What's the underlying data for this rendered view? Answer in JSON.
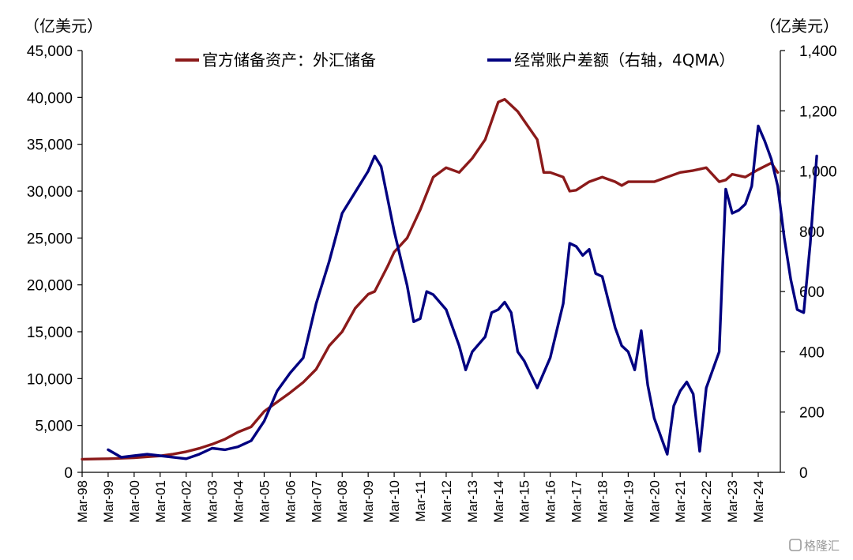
{
  "chart_data": {
    "type": "line",
    "left_axis_unit": "（亿美元）",
    "right_axis_unit": "（亿美元）",
    "y_left": {
      "lim": [
        0,
        45000
      ],
      "ticks": [
        0,
        5000,
        10000,
        15000,
        20000,
        25000,
        30000,
        35000,
        40000,
        45000
      ],
      "tick_labels": [
        "0",
        "5,000",
        "10,000",
        "15,000",
        "20,000",
        "25,000",
        "30,000",
        "35,000",
        "40,000",
        "45,000"
      ]
    },
    "y_right": {
      "lim": [
        0,
        1400
      ],
      "ticks": [
        0,
        200,
        400,
        600,
        800,
        1000,
        1200,
        1400
      ],
      "tick_labels": [
        "0",
        "200",
        "400",
        "600",
        "800",
        "1,000",
        "1,200",
        "1,400"
      ]
    },
    "x_axis": {
      "start": 1998.0,
      "end": 2024.85,
      "tick_labels": [
        "Mar-98",
        "Mar-99",
        "Mar-00",
        "Mar-01",
        "Mar-02",
        "Mar-03",
        "Mar-04",
        "Mar-05",
        "Mar-06",
        "Mar-07",
        "Mar-08",
        "Mar-09",
        "Mar-10",
        "Mar-11",
        "Mar-12",
        "Mar-13",
        "Mar-14",
        "Mar-15",
        "Mar-16",
        "Mar-17",
        "Mar-18",
        "Mar-19",
        "Mar-20",
        "Mar-21",
        "Mar-22",
        "Mar-23",
        "Mar-24"
      ]
    },
    "legend_position": "top",
    "series": [
      {
        "name": "官方储备资产：外汇储备",
        "axis": "left",
        "color": "#8B1A1A",
        "points": [
          [
            "Mar-1998",
            1400
          ],
          [
            "Mar-1999",
            1450
          ],
          [
            "Mar-2000",
            1550
          ],
          [
            "Mar-2001",
            1750
          ],
          [
            "Sep-2001",
            1950
          ],
          [
            "Mar-2002",
            2200
          ],
          [
            "Sep-2002",
            2550
          ],
          [
            "Mar-2003",
            3000
          ],
          [
            "Sep-2003",
            3550
          ],
          [
            "Mar-2004",
            4300
          ],
          [
            "Sep-2004",
            4850
          ],
          [
            "Mar-2005",
            6500
          ],
          [
            "Sep-2005",
            7500
          ],
          [
            "Mar-2006",
            8500
          ],
          [
            "Sep-2006",
            9600
          ],
          [
            "Mar-2007",
            11000
          ],
          [
            "Sep-2007",
            13500
          ],
          [
            "Mar-2008",
            15000
          ],
          [
            "Sep-2008",
            17500
          ],
          [
            "Mar-2009",
            19000
          ],
          [
            "Jun-2009",
            19300
          ],
          [
            "Dec-2009",
            22000
          ],
          [
            "Mar-2010",
            23500
          ],
          [
            "Sep-2010",
            25000
          ],
          [
            "Mar-2011",
            28000
          ],
          [
            "Sep-2011",
            31500
          ],
          [
            "Mar-2012",
            32500
          ],
          [
            "Sep-2012",
            32000
          ],
          [
            "Mar-2013",
            33500
          ],
          [
            "Sep-2013",
            35500
          ],
          [
            "Mar-2014",
            39500
          ],
          [
            "Jun-2014",
            39800
          ],
          [
            "Dec-2014",
            38500
          ],
          [
            "Mar-2015",
            37500
          ],
          [
            "Sep-2015",
            35500
          ],
          [
            "Dec-2015",
            32000
          ],
          [
            "Mar-2016",
            32000
          ],
          [
            "Sep-2016",
            31500
          ],
          [
            "Dec-2016",
            30000
          ],
          [
            "Mar-2017",
            30100
          ],
          [
            "Sep-2017",
            31000
          ],
          [
            "Mar-2018",
            31500
          ],
          [
            "Sep-2018",
            31000
          ],
          [
            "Dec-2018",
            30600
          ],
          [
            "Mar-2019",
            31000
          ],
          [
            "Sep-2019",
            31000
          ],
          [
            "Mar-2020",
            31000
          ],
          [
            "Sep-2020",
            31500
          ],
          [
            "Mar-2021",
            32000
          ],
          [
            "Sep-2021",
            32200
          ],
          [
            "Mar-2022",
            32500
          ],
          [
            "Sep-2022",
            31000
          ],
          [
            "Dec-2022",
            31200
          ],
          [
            "Mar-2023",
            31800
          ],
          [
            "Sep-2023",
            31500
          ],
          [
            "Mar-2024",
            32300
          ],
          [
            "Sep-2024",
            33000
          ],
          [
            "Dec-2024",
            32000
          ]
        ]
      },
      {
        "name": "经常账户差额（右轴，4QMA）",
        "axis": "right",
        "color": "#000080",
        "points": [
          [
            "Mar-1999",
            75
          ],
          [
            "Sep-1999",
            50
          ],
          [
            "Mar-2000",
            55
          ],
          [
            "Sep-2000",
            60
          ],
          [
            "Mar-2001",
            55
          ],
          [
            "Sep-2001",
            50
          ],
          [
            "Mar-2002",
            45
          ],
          [
            "Sep-2002",
            60
          ],
          [
            "Mar-2003",
            80
          ],
          [
            "Sep-2003",
            75
          ],
          [
            "Mar-2004",
            85
          ],
          [
            "Sep-2004",
            105
          ],
          [
            "Mar-2005",
            170
          ],
          [
            "Sep-2005",
            270
          ],
          [
            "Mar-2006",
            330
          ],
          [
            "Sep-2006",
            380
          ],
          [
            "Mar-2007",
            560
          ],
          [
            "Sep-2007",
            700
          ],
          [
            "Mar-2008",
            860
          ],
          [
            "Sep-2008",
            930
          ],
          [
            "Mar-2009",
            1000
          ],
          [
            "Jun-2009",
            1050
          ],
          [
            "Sep-2009",
            1015
          ],
          [
            "Mar-2010",
            800
          ],
          [
            "Sep-2010",
            620
          ],
          [
            "Dec-2010",
            500
          ],
          [
            "Mar-2011",
            510
          ],
          [
            "Jun-2011",
            600
          ],
          [
            "Sep-2011",
            590
          ],
          [
            "Mar-2012",
            540
          ],
          [
            "Sep-2012",
            420
          ],
          [
            "Dec-2012",
            340
          ],
          [
            "Mar-2013",
            400
          ],
          [
            "Sep-2013",
            450
          ],
          [
            "Dec-2013",
            530
          ],
          [
            "Mar-2014",
            540
          ],
          [
            "Jun-2014",
            565
          ],
          [
            "Sep-2014",
            530
          ],
          [
            "Dec-2014",
            400
          ],
          [
            "Mar-2015",
            370
          ],
          [
            "Sep-2015",
            280
          ],
          [
            "Mar-2016",
            380
          ],
          [
            "Sep-2016",
            560
          ],
          [
            "Dec-2016",
            760
          ],
          [
            "Mar-2017",
            750
          ],
          [
            "Jun-2017",
            720
          ],
          [
            "Sep-2017",
            740
          ],
          [
            "Dec-2017",
            660
          ],
          [
            "Mar-2018",
            650
          ],
          [
            "Sep-2018",
            480
          ],
          [
            "Dec-2018",
            420
          ],
          [
            "Mar-2019",
            400
          ],
          [
            "Jun-2019",
            340
          ],
          [
            "Sep-2019",
            470
          ],
          [
            "Dec-2019",
            290
          ],
          [
            "Mar-2020",
            180
          ],
          [
            "Sep-2020",
            60
          ],
          [
            "Dec-2020",
            220
          ],
          [
            "Mar-2021",
            270
          ],
          [
            "Jun-2021",
            300
          ],
          [
            "Sep-2021",
            260
          ],
          [
            "Dec-2021",
            70
          ],
          [
            "Mar-2022",
            280
          ],
          [
            "Sep-2022",
            400
          ],
          [
            "Dec-2022",
            940
          ],
          [
            "Mar-2023",
            860
          ],
          [
            "Jun-2023",
            870
          ],
          [
            "Sep-2023",
            890
          ],
          [
            "Dec-2023",
            950
          ],
          [
            "Mar-2024",
            1150
          ],
          [
            "Jun-2024",
            1100
          ],
          [
            "Sep-2024",
            1040
          ],
          [
            "Dec-2024",
            950
          ],
          [
            "Mar-2025",
            780
          ],
          [
            "Jun-2025",
            640
          ],
          [
            "Sep-2025",
            540
          ],
          [
            "Dec-2025",
            530
          ],
          [
            "Mar-2026",
            760
          ],
          [
            "Jun-2026",
            1050
          ]
        ]
      }
    ]
  },
  "watermark": "格隆汇"
}
